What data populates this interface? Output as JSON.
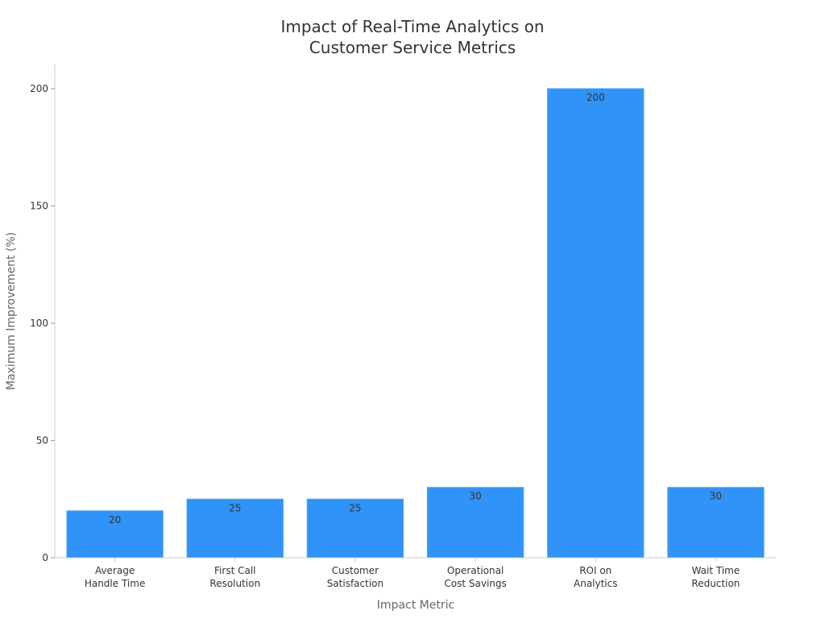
{
  "chart_data": {
    "type": "bar",
    "title": [
      "Impact of Real-Time Analytics on",
      "Customer Service Metrics"
    ],
    "xlabel": "Impact Metric",
    "ylabel": "Maximum Improvement (%)",
    "categories": [
      [
        "Average",
        "Handle Time"
      ],
      [
        "First Call",
        "Resolution"
      ],
      [
        "Customer",
        "Satisfaction"
      ],
      [
        "Operational",
        "Cost Savings"
      ],
      [
        "ROI on",
        "Analytics"
      ],
      [
        "Wait Time",
        "Reduction"
      ]
    ],
    "values": [
      20,
      25,
      25,
      30,
      200,
      30
    ],
    "data_labels": [
      "20",
      "25",
      "25",
      "30",
      "200",
      "30"
    ],
    "ylim": [
      0,
      210
    ],
    "yticks": [
      0,
      50,
      100,
      150,
      200
    ],
    "grid": false,
    "legend": "none",
    "colors": {
      "bar": "#2f93f8",
      "bar_edge": "#4aa3fa",
      "axis": "#cccccc",
      "text": "#333333",
      "label": "#666666"
    }
  }
}
